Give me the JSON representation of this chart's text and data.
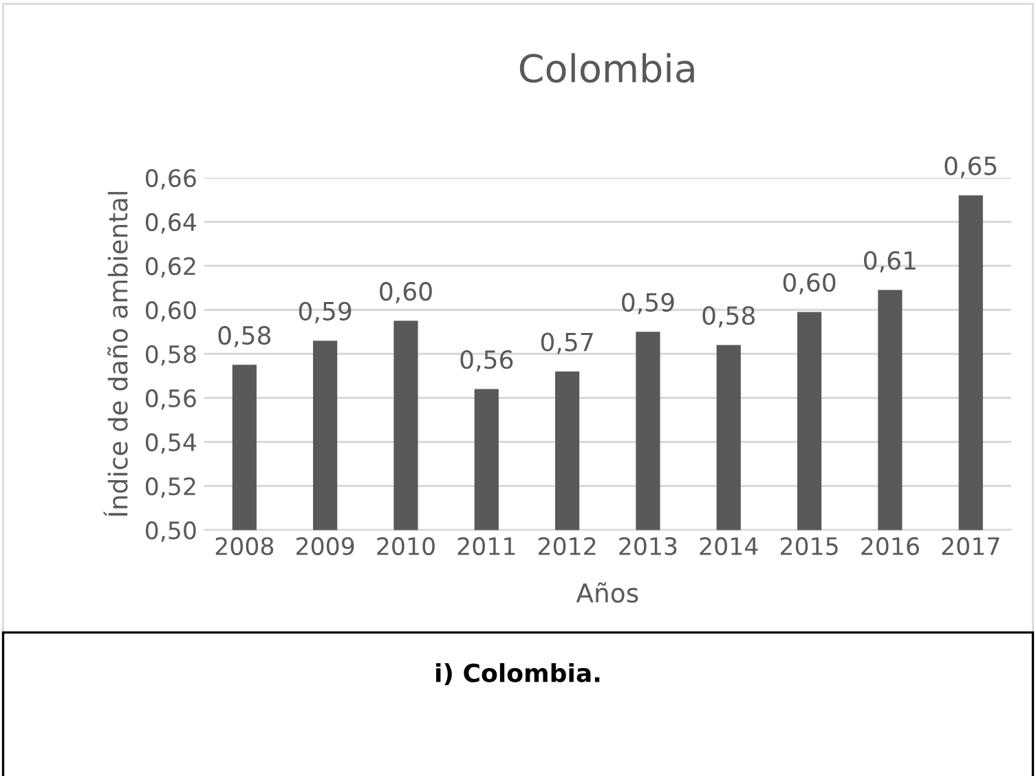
{
  "chart_data": {
    "type": "bar",
    "title": "Colombia",
    "xlabel": "Años",
    "ylabel": "Índice de daño ambiental",
    "categories": [
      "2008",
      "2009",
      "2010",
      "2011",
      "2012",
      "2013",
      "2014",
      "2015",
      "2016",
      "2017"
    ],
    "values": [
      0.575,
      0.586,
      0.595,
      0.564,
      0.572,
      0.59,
      0.584,
      0.599,
      0.609,
      0.652
    ],
    "value_labels": [
      "0,58",
      "0,59",
      "0,60",
      "0,56",
      "0,57",
      "0,59",
      "0,58",
      "0,60",
      "0,61",
      "0,65"
    ],
    "color": "#595959",
    "ylim": [
      0.5,
      0.66
    ],
    "yticks": [
      {
        "value": 0.5,
        "label": "0,50"
      },
      {
        "value": 0.52,
        "label": "0,52"
      },
      {
        "value": 0.54,
        "label": "0,54"
      },
      {
        "value": 0.56,
        "label": "0,56"
      },
      {
        "value": 0.58,
        "label": "0,58"
      },
      {
        "value": 0.6,
        "label": "0,60"
      },
      {
        "value": 0.62,
        "label": "0,62"
      },
      {
        "value": 0.64,
        "label": "0,64"
      },
      {
        "value": 0.66,
        "label": "0,66"
      }
    ],
    "grid": "y",
    "legend": false,
    "annotations": [
      "i) Colombia."
    ]
  }
}
